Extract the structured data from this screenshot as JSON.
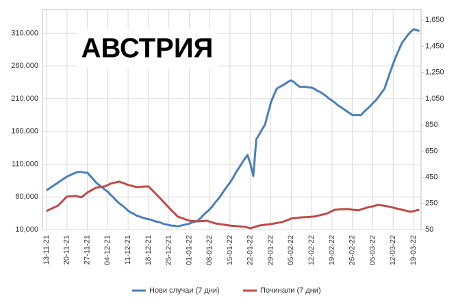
{
  "chart_data": {
    "type": "line",
    "title": "АВСТРИЯ",
    "categories": [
      "13-11-21",
      null,
      null,
      null,
      null,
      null,
      null,
      "20-11-21",
      null,
      null,
      null,
      null,
      null,
      null,
      "27-11-21",
      null,
      null,
      null,
      null,
      null,
      null,
      "04-12-21",
      null,
      null,
      null,
      null,
      null,
      null,
      "11-12-21",
      null,
      null,
      null,
      null,
      null,
      null,
      "18-12-21",
      null,
      null,
      null,
      null,
      null,
      null,
      "25-12-21",
      null,
      null,
      null,
      null,
      null,
      null,
      "01-01-22",
      null,
      null,
      null,
      null,
      null,
      null,
      "08-01-22",
      null,
      null,
      null,
      null,
      null,
      null,
      "15-01-22",
      null,
      null,
      null,
      null,
      null,
      null,
      "22-01-22",
      null,
      null,
      null,
      null,
      null,
      null,
      "29-01-22",
      null,
      null,
      null,
      null,
      null,
      null,
      "05-02-22",
      null,
      null,
      null,
      null,
      null,
      null,
      "12-02-22",
      null,
      null,
      null,
      null,
      null,
      null,
      "19-02-22",
      null,
      null,
      null,
      null,
      null,
      null,
      "26-02-22",
      null,
      null,
      null,
      null,
      null,
      null,
      "05-03-22",
      null,
      null,
      null,
      null,
      null,
      null,
      "12-03-22",
      null,
      null,
      null,
      null,
      null,
      null,
      "19-03-22",
      null,
      null
    ],
    "series": [
      {
        "name": "Нови случаи (7 дни)",
        "color": "#4a7ebb",
        "values": [
          70000,
          73000,
          76000,
          79000,
          82000,
          85000,
          88000,
          91000,
          93000,
          95000,
          97000,
          98000,
          98000,
          97000,
          97000,
          92000,
          87000,
          82000,
          78000,
          75000,
          71000,
          68000,
          63000,
          59000,
          54000,
          50000,
          47000,
          43000,
          39000,
          36000,
          34000,
          31000,
          30000,
          28000,
          27000,
          26000,
          25000,
          23000,
          22000,
          21000,
          19000,
          18000,
          17000,
          16000,
          16000,
          15000,
          16000,
          17000,
          18000,
          19000,
          21000,
          22000,
          24000,
          28000,
          33000,
          37000,
          41000,
          46000,
          52000,
          57000,
          63000,
          70000,
          76000,
          82000,
          89000,
          97000,
          104000,
          111000,
          118000,
          124000,
          110000,
          92000,
          148000,
          155000,
          163000,
          170000,
          187000,
          204000,
          215000,
          225000,
          228000,
          230000,
          233000,
          236000,
          238000,
          235000,
          231000,
          228000,
          228000,
          228000,
          227000,
          227000,
          225000,
          222000,
          220000,
          217000,
          214000,
          210000,
          207000,
          204000,
          200000,
          197000,
          194000,
          191000,
          188000,
          185000,
          185000,
          185000,
          185000,
          190000,
          194000,
          198000,
          203000,
          207000,
          213000,
          219000,
          225000,
          238000,
          251000,
          263000,
          275000,
          285000,
          295000,
          301000,
          307000,
          312000,
          316000,
          315000,
          313000
        ]
      },
      {
        "name": "Починали (7 дни)",
        "color": "#be4b48",
        "axis": "y2",
        "values": [
          192,
          203,
          213,
          224,
          234,
          257,
          280,
          302,
          304,
          305,
          307,
          302,
          297,
          315,
          333,
          345,
          358,
          370,
          373,
          377,
          380,
          390,
          401,
          406,
          412,
          417,
          408,
          400,
          391,
          386,
          380,
          375,
          376,
          378,
          379,
          380,
          357,
          335,
          312,
          289,
          265,
          242,
          218,
          195,
          173,
          150,
          142,
          134,
          126,
          118,
          116,
          115,
          113,
          115,
          116,
          118,
          111,
          104,
          97,
          94,
          91,
          87,
          84,
          81,
          79,
          77,
          75,
          73,
          71,
          66,
          60,
          67,
          74,
          81,
          84,
          87,
          89,
          92,
          96,
          100,
          104,
          108,
          117,
          125,
          134,
          137,
          139,
          142,
          144,
          146,
          147,
          149,
          150,
          155,
          161,
          166,
          171,
          181,
          192,
          202,
          203,
          205,
          206,
          207,
          205,
          202,
          200,
          197,
          204,
          211,
          218,
          223,
          228,
          234,
          239,
          235,
          232,
          228,
          223,
          218,
          212,
          207,
          202,
          197,
          191,
          186,
          191,
          197,
          202
        ]
      }
    ],
    "ylim": [
      10000,
      346000
    ],
    "yticks": [
      {
        "value": 10000,
        "label": "10,000"
      },
      {
        "value": 60000,
        "label": "60,000"
      },
      {
        "value": 110000,
        "label": "110,000"
      },
      {
        "value": 160000,
        "label": "160,000"
      },
      {
        "value": 210000,
        "label": "210,000"
      },
      {
        "value": 260000,
        "label": "260,000"
      },
      {
        "value": 310000,
        "label": "310,000"
      }
    ],
    "y2lim": [
      50,
      1730
    ],
    "y2ticks": [
      50,
      250,
      450,
      650,
      850,
      {
        "value": 1050,
        "label": "1,050"
      },
      {
        "value": 1250,
        "label": "1,250"
      },
      {
        "value": 1450,
        "label": "1,450"
      },
      {
        "value": 1650,
        "label": "1,650"
      }
    ],
    "grid": true
  }
}
